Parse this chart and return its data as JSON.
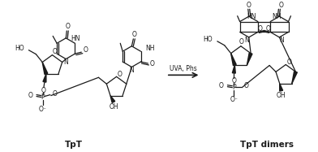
{
  "label_left": "TpT",
  "label_right": "TpT dimers",
  "arrow_label": "UVA, Phs",
  "background_color": "#ffffff",
  "text_color": "#1a1a1a",
  "figsize": [
    3.92,
    1.87
  ],
  "dpi": 100
}
